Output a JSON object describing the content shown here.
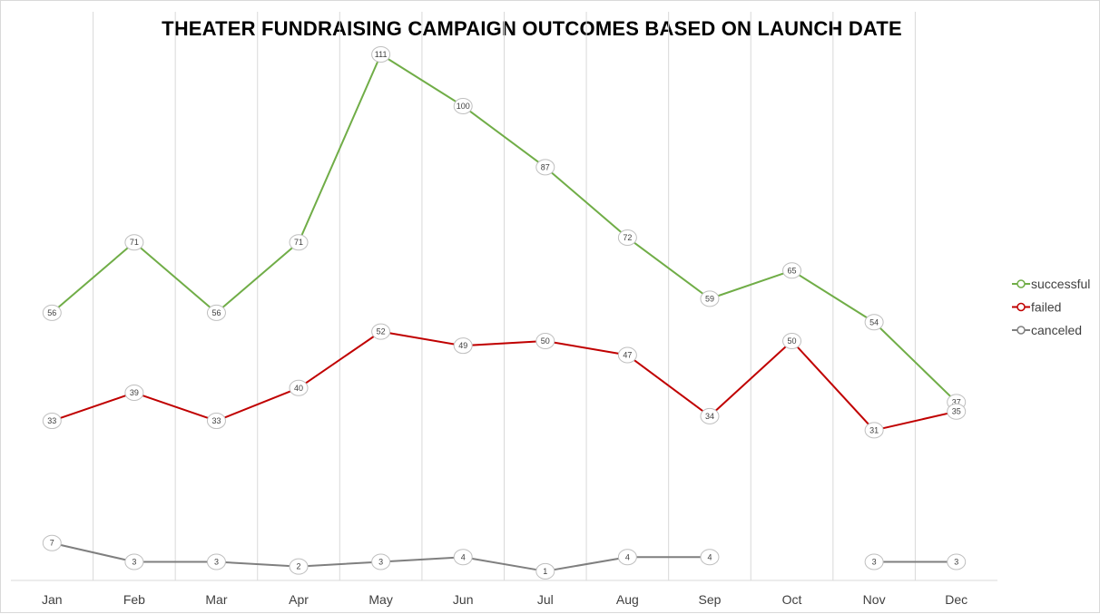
{
  "chart_data": {
    "type": "line",
    "title": "THEATER FUNDRAISING CAMPAIGN OUTCOMES BASED ON LAUNCH DATE",
    "xlabel": "",
    "ylabel": "",
    "categories": [
      "Jan",
      "Feb",
      "Mar",
      "Apr",
      "May",
      "Jun",
      "Jul",
      "Aug",
      "Sep",
      "Oct",
      "Nov",
      "Dec"
    ],
    "ylim": [
      0,
      111
    ],
    "grid": "vertical",
    "legend_position": "right",
    "series": [
      {
        "name": "successful",
        "color": "#70ad47",
        "values": [
          56,
          71,
          56,
          71,
          111,
          100,
          87,
          72,
          59,
          65,
          54,
          37
        ]
      },
      {
        "name": "failed",
        "color": "#c00000",
        "values": [
          33,
          39,
          33,
          40,
          52,
          49,
          50,
          47,
          34,
          50,
          31,
          35
        ]
      },
      {
        "name": "canceled",
        "color": "#7f7f7f",
        "values": [
          7,
          3,
          3,
          2,
          3,
          4,
          1,
          4,
          4,
          null,
          3,
          3
        ]
      }
    ]
  }
}
